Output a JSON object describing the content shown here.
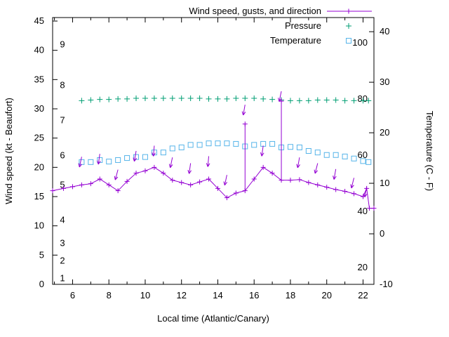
{
  "colors": {
    "wind": "#9400d3",
    "pressure": "#009e73",
    "temperature": "#56b4e9",
    "axis": "#000000",
    "background": "#ffffff"
  },
  "legend": {
    "items": [
      {
        "label": "Wind speed, gusts, and direction",
        "marker": "line-plus",
        "color": "#9400d3"
      },
      {
        "label": "Pressure",
        "marker": "plus",
        "color": "#009e73"
      },
      {
        "label": "Temperature",
        "marker": "open-square",
        "color": "#56b4e9"
      }
    ]
  },
  "chart_data": {
    "type": "line",
    "title": "",
    "x_axis": {
      "label": "Local time (Atlantic/Canary)",
      "min": 4.9,
      "max": 22.6,
      "major_ticks": [
        6,
        8,
        10,
        12,
        14,
        16,
        18,
        20,
        22
      ],
      "minor_ticks": [
        5,
        7,
        9,
        11,
        13,
        15,
        17,
        19,
        21
      ]
    },
    "y_left_axis": {
      "label": "Wind speed (kt - Beaufort)",
      "min": 0,
      "max": 45.6,
      "major_ticks": [
        0,
        5,
        10,
        15,
        20,
        25,
        30,
        35,
        40,
        45
      ],
      "beaufort_labels": [
        {
          "label": "1",
          "kt": 1
        },
        {
          "label": "2",
          "kt": 4
        },
        {
          "label": "3",
          "kt": 7
        },
        {
          "label": "4",
          "kt": 11
        },
        {
          "label": "5",
          "kt": 17
        },
        {
          "label": "6",
          "kt": 22
        },
        {
          "label": "7",
          "kt": 28
        },
        {
          "label": "8",
          "kt": 34
        },
        {
          "label": "9",
          "kt": 41
        }
      ]
    },
    "y_right_axis": {
      "label": "Temperature (C - F)",
      "min": -10,
      "max": 42.8,
      "major_ticks": [
        -10,
        0,
        10,
        20,
        30,
        40
      ],
      "fahrenheit_labels": [
        20,
        40,
        60,
        80,
        100
      ]
    },
    "series": [
      {
        "name": "Wind speed, gusts, and direction",
        "color": "#9400d3",
        "style": "line-plus",
        "y_axis": "left",
        "x": [
          4.9,
          5.5,
          6.0,
          6.5,
          7.0,
          7.5,
          8.0,
          8.5,
          9.0,
          9.5,
          10.0,
          10.5,
          11.0,
          11.5,
          12.0,
          12.5,
          13.0,
          13.5,
          14.0,
          14.5,
          15.0,
          15.5,
          16.0,
          16.5,
          17.0,
          17.5,
          18.0,
          18.5,
          19.0,
          19.5,
          20.0,
          20.5,
          21.0,
          21.5,
          22.0,
          22.2,
          22.35,
          22.6
        ],
        "y": [
          16,
          16.4,
          16.7,
          17,
          17.2,
          18,
          17,
          16,
          17.6,
          19,
          19.4,
          20,
          19,
          17.8,
          17.4,
          17,
          17.5,
          18,
          16.4,
          14.8,
          15.6,
          16,
          18,
          20,
          19,
          17.8,
          17.8,
          17.9,
          17.4,
          17,
          16.6,
          16.2,
          15.9,
          15.5,
          15,
          16.4,
          13,
          13
        ]
      },
      {
        "name": "Pressure",
        "color": "#009e73",
        "style": "plus",
        "y_axis": "left",
        "x": [
          6.5,
          7.0,
          7.5,
          8.0,
          8.5,
          9.0,
          9.5,
          10.0,
          10.5,
          11.0,
          11.5,
          12.0,
          12.5,
          13.0,
          13.5,
          14.0,
          14.5,
          15.0,
          15.5,
          16.0,
          16.5,
          17.0,
          17.5,
          18.0,
          18.5,
          19.0,
          19.5,
          20.0,
          20.5,
          21.0,
          21.5,
          22.0,
          22.3
        ],
        "y": [
          31.4,
          31.5,
          31.6,
          31.6,
          31.7,
          31.7,
          31.8,
          31.8,
          31.8,
          31.8,
          31.8,
          31.8,
          31.8,
          31.8,
          31.7,
          31.7,
          31.7,
          31.8,
          31.8,
          31.8,
          31.7,
          31.6,
          31.5,
          31.4,
          31.4,
          31.4,
          31.5,
          31.5,
          31.5,
          31.4,
          31.4,
          31.4,
          31.4
        ]
      },
      {
        "name": "Temperature",
        "color": "#56b4e9",
        "style": "open-square",
        "y_axis": "right_celsius",
        "x": [
          6.5,
          7.0,
          7.5,
          8.0,
          8.5,
          9.0,
          9.5,
          10.0,
          10.5,
          11.0,
          11.5,
          12.0,
          12.5,
          13.0,
          13.5,
          14.0,
          14.5,
          15.0,
          15.5,
          16.0,
          16.5,
          17.0,
          17.5,
          18.0,
          18.5,
          19.0,
          19.5,
          20.0,
          20.5,
          21.0,
          21.5,
          22.0,
          22.3
        ],
        "y": [
          14.2,
          14.2,
          14.6,
          14.3,
          14.6,
          15.0,
          15.2,
          15.2,
          16.1,
          16.1,
          16.9,
          17.1,
          17.6,
          17.6,
          17.9,
          17.9,
          17.9,
          17.8,
          17.3,
          17.6,
          17.8,
          17.8,
          17.1,
          17.2,
          17.1,
          16.4,
          16.1,
          15.6,
          15.6,
          15.3,
          14.9,
          14.4,
          14.2
        ]
      }
    ],
    "gusts": [
      {
        "x": 15.5,
        "from_kt": 16,
        "to_kt": 27.4
      },
      {
        "x": 17.5,
        "from_kt": 17.8,
        "to_kt": 31.3
      }
    ],
    "wind_direction_arrows": [
      {
        "x": 6.5,
        "kt": 21.8,
        "tilt_deg": 12
      },
      {
        "x": 7.5,
        "kt": 22.3,
        "tilt_deg": 8
      },
      {
        "x": 8.5,
        "kt": 19.6,
        "tilt_deg": 15
      },
      {
        "x": 9.5,
        "kt": 22.8,
        "tilt_deg": 10
      },
      {
        "x": 10.5,
        "kt": 23.7,
        "tilt_deg": 5
      },
      {
        "x": 11.5,
        "kt": 21.7,
        "tilt_deg": 12
      },
      {
        "x": 12.5,
        "kt": 20.7,
        "tilt_deg": 8
      },
      {
        "x": 13.5,
        "kt": 21.9,
        "tilt_deg": 5
      },
      {
        "x": 14.5,
        "kt": 18.7,
        "tilt_deg": 12
      },
      {
        "x": 15.5,
        "kt": 30.7,
        "tilt_deg": 10
      },
      {
        "x": 16.5,
        "kt": 23.7,
        "tilt_deg": 8
      },
      {
        "x": 17.5,
        "kt": 33.0,
        "tilt_deg": 12
      },
      {
        "x": 18.5,
        "kt": 21.7,
        "tilt_deg": 10
      },
      {
        "x": 19.5,
        "kt": 20.7,
        "tilt_deg": 14
      },
      {
        "x": 20.5,
        "kt": 19.7,
        "tilt_deg": 10
      },
      {
        "x": 21.5,
        "kt": 18.2,
        "tilt_deg": 14
      },
      {
        "x": 22.2,
        "kt": 16.7,
        "tilt_deg": 10
      }
    ]
  }
}
